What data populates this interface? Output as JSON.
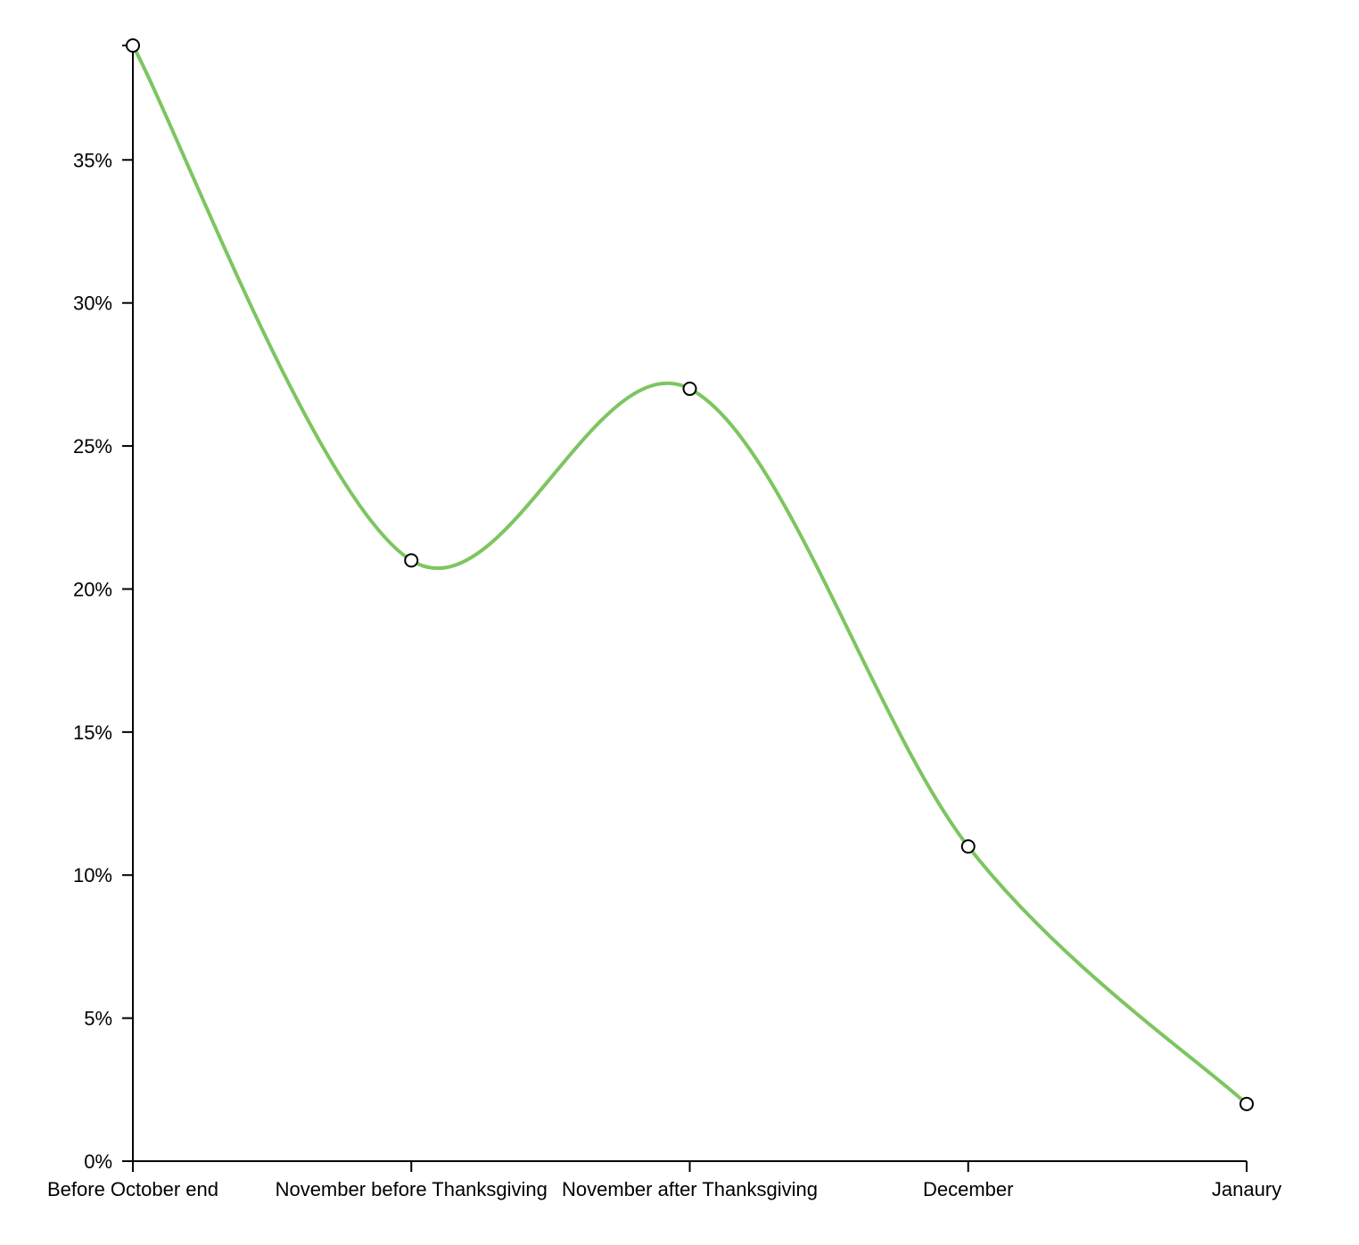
{
  "chart_data": {
    "type": "line",
    "title": "",
    "xlabel": "",
    "ylabel": "",
    "categories": [
      "Before October end",
      "November before Thanksgiving",
      "November after Thanksgiving",
      "December",
      "Janaury"
    ],
    "series": [
      {
        "values": [
          39,
          21,
          27,
          11,
          2
        ],
        "color": "#7dc560"
      }
    ],
    "ylim": [
      0,
      39
    ],
    "y_ticks": [
      {
        "value": 0,
        "label": "0%"
      },
      {
        "value": 5,
        "label": "5%"
      },
      {
        "value": 10,
        "label": "10%"
      },
      {
        "value": 15,
        "label": "15%"
      },
      {
        "value": 20,
        "label": "20%"
      },
      {
        "value": 25,
        "label": "25%"
      },
      {
        "value": 30,
        "label": "30%"
      },
      {
        "value": 35,
        "label": "35%"
      }
    ],
    "y_format": "percent",
    "curve": "smooth",
    "grid": false,
    "legend": "none",
    "marker": "open-circle"
  }
}
